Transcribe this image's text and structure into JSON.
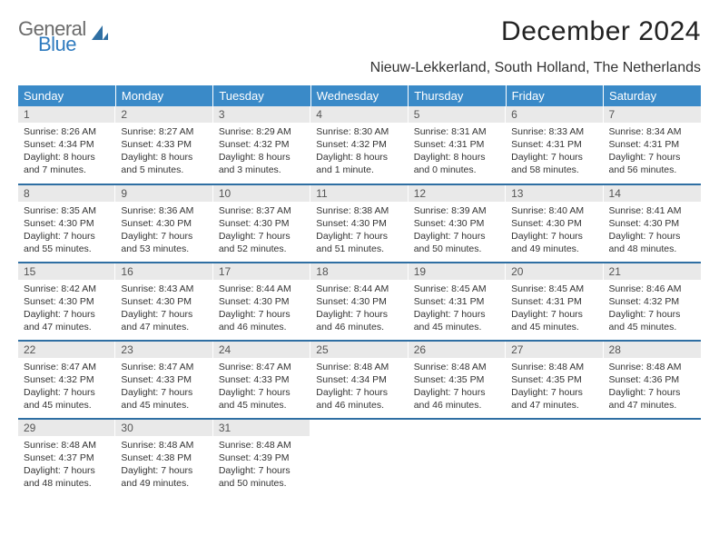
{
  "brand": {
    "line1": "General",
    "line2": "Blue"
  },
  "title": "December 2024",
  "location": "Nieuw-Lekkerland, South Holland, The Netherlands",
  "colors": {
    "header_bg": "#3a8ac8",
    "header_text": "#ffffff",
    "daynum_bg": "#e9e9e9",
    "row_divider": "#2f6fa3",
    "logo_gray": "#6b6b6b",
    "logo_blue": "#2f7bbf"
  },
  "weekdays": [
    "Sunday",
    "Monday",
    "Tuesday",
    "Wednesday",
    "Thursday",
    "Friday",
    "Saturday"
  ],
  "weeks": [
    [
      {
        "num": "1",
        "sunrise": "Sunrise: 8:26 AM",
        "sunset": "Sunset: 4:34 PM",
        "daylight": "Daylight: 8 hours and 7 minutes."
      },
      {
        "num": "2",
        "sunrise": "Sunrise: 8:27 AM",
        "sunset": "Sunset: 4:33 PM",
        "daylight": "Daylight: 8 hours and 5 minutes."
      },
      {
        "num": "3",
        "sunrise": "Sunrise: 8:29 AM",
        "sunset": "Sunset: 4:32 PM",
        "daylight": "Daylight: 8 hours and 3 minutes."
      },
      {
        "num": "4",
        "sunrise": "Sunrise: 8:30 AM",
        "sunset": "Sunset: 4:32 PM",
        "daylight": "Daylight: 8 hours and 1 minute."
      },
      {
        "num": "5",
        "sunrise": "Sunrise: 8:31 AM",
        "sunset": "Sunset: 4:31 PM",
        "daylight": "Daylight: 8 hours and 0 minutes."
      },
      {
        "num": "6",
        "sunrise": "Sunrise: 8:33 AM",
        "sunset": "Sunset: 4:31 PM",
        "daylight": "Daylight: 7 hours and 58 minutes."
      },
      {
        "num": "7",
        "sunrise": "Sunrise: 8:34 AM",
        "sunset": "Sunset: 4:31 PM",
        "daylight": "Daylight: 7 hours and 56 minutes."
      }
    ],
    [
      {
        "num": "8",
        "sunrise": "Sunrise: 8:35 AM",
        "sunset": "Sunset: 4:30 PM",
        "daylight": "Daylight: 7 hours and 55 minutes."
      },
      {
        "num": "9",
        "sunrise": "Sunrise: 8:36 AM",
        "sunset": "Sunset: 4:30 PM",
        "daylight": "Daylight: 7 hours and 53 minutes."
      },
      {
        "num": "10",
        "sunrise": "Sunrise: 8:37 AM",
        "sunset": "Sunset: 4:30 PM",
        "daylight": "Daylight: 7 hours and 52 minutes."
      },
      {
        "num": "11",
        "sunrise": "Sunrise: 8:38 AM",
        "sunset": "Sunset: 4:30 PM",
        "daylight": "Daylight: 7 hours and 51 minutes."
      },
      {
        "num": "12",
        "sunrise": "Sunrise: 8:39 AM",
        "sunset": "Sunset: 4:30 PM",
        "daylight": "Daylight: 7 hours and 50 minutes."
      },
      {
        "num": "13",
        "sunrise": "Sunrise: 8:40 AM",
        "sunset": "Sunset: 4:30 PM",
        "daylight": "Daylight: 7 hours and 49 minutes."
      },
      {
        "num": "14",
        "sunrise": "Sunrise: 8:41 AM",
        "sunset": "Sunset: 4:30 PM",
        "daylight": "Daylight: 7 hours and 48 minutes."
      }
    ],
    [
      {
        "num": "15",
        "sunrise": "Sunrise: 8:42 AM",
        "sunset": "Sunset: 4:30 PM",
        "daylight": "Daylight: 7 hours and 47 minutes."
      },
      {
        "num": "16",
        "sunrise": "Sunrise: 8:43 AM",
        "sunset": "Sunset: 4:30 PM",
        "daylight": "Daylight: 7 hours and 47 minutes."
      },
      {
        "num": "17",
        "sunrise": "Sunrise: 8:44 AM",
        "sunset": "Sunset: 4:30 PM",
        "daylight": "Daylight: 7 hours and 46 minutes."
      },
      {
        "num": "18",
        "sunrise": "Sunrise: 8:44 AM",
        "sunset": "Sunset: 4:30 PM",
        "daylight": "Daylight: 7 hours and 46 minutes."
      },
      {
        "num": "19",
        "sunrise": "Sunrise: 8:45 AM",
        "sunset": "Sunset: 4:31 PM",
        "daylight": "Daylight: 7 hours and 45 minutes."
      },
      {
        "num": "20",
        "sunrise": "Sunrise: 8:45 AM",
        "sunset": "Sunset: 4:31 PM",
        "daylight": "Daylight: 7 hours and 45 minutes."
      },
      {
        "num": "21",
        "sunrise": "Sunrise: 8:46 AM",
        "sunset": "Sunset: 4:32 PM",
        "daylight": "Daylight: 7 hours and 45 minutes."
      }
    ],
    [
      {
        "num": "22",
        "sunrise": "Sunrise: 8:47 AM",
        "sunset": "Sunset: 4:32 PM",
        "daylight": "Daylight: 7 hours and 45 minutes."
      },
      {
        "num": "23",
        "sunrise": "Sunrise: 8:47 AM",
        "sunset": "Sunset: 4:33 PM",
        "daylight": "Daylight: 7 hours and 45 minutes."
      },
      {
        "num": "24",
        "sunrise": "Sunrise: 8:47 AM",
        "sunset": "Sunset: 4:33 PM",
        "daylight": "Daylight: 7 hours and 45 minutes."
      },
      {
        "num": "25",
        "sunrise": "Sunrise: 8:48 AM",
        "sunset": "Sunset: 4:34 PM",
        "daylight": "Daylight: 7 hours and 46 minutes."
      },
      {
        "num": "26",
        "sunrise": "Sunrise: 8:48 AM",
        "sunset": "Sunset: 4:35 PM",
        "daylight": "Daylight: 7 hours and 46 minutes."
      },
      {
        "num": "27",
        "sunrise": "Sunrise: 8:48 AM",
        "sunset": "Sunset: 4:35 PM",
        "daylight": "Daylight: 7 hours and 47 minutes."
      },
      {
        "num": "28",
        "sunrise": "Sunrise: 8:48 AM",
        "sunset": "Sunset: 4:36 PM",
        "daylight": "Daylight: 7 hours and 47 minutes."
      }
    ],
    [
      {
        "num": "29",
        "sunrise": "Sunrise: 8:48 AM",
        "sunset": "Sunset: 4:37 PM",
        "daylight": "Daylight: 7 hours and 48 minutes."
      },
      {
        "num": "30",
        "sunrise": "Sunrise: 8:48 AM",
        "sunset": "Sunset: 4:38 PM",
        "daylight": "Daylight: 7 hours and 49 minutes."
      },
      {
        "num": "31",
        "sunrise": "Sunrise: 8:48 AM",
        "sunset": "Sunset: 4:39 PM",
        "daylight": "Daylight: 7 hours and 50 minutes."
      },
      null,
      null,
      null,
      null
    ]
  ]
}
